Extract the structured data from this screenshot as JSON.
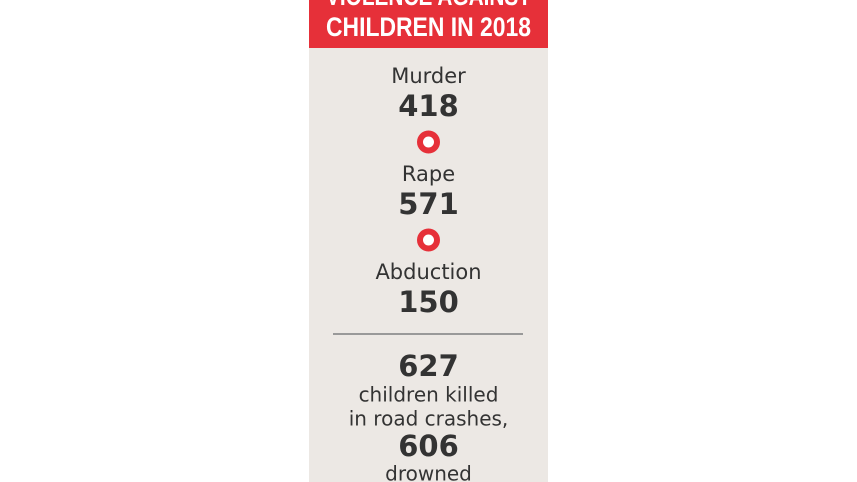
{
  "header": {
    "title_lines": [
      "VIOLENCE AGAINST",
      "CHILDREN IN 2018"
    ]
  },
  "items": [
    {
      "label": "Murder",
      "value": 418
    },
    {
      "label": "Rape",
      "value": 571
    },
    {
      "label": "Abduction",
      "value": 150
    }
  ],
  "footer": {
    "value_1": 627,
    "text_1_lines": [
      "children killed",
      "in road crashes,"
    ],
    "value_2": 606,
    "text_2": "drowned"
  }
}
